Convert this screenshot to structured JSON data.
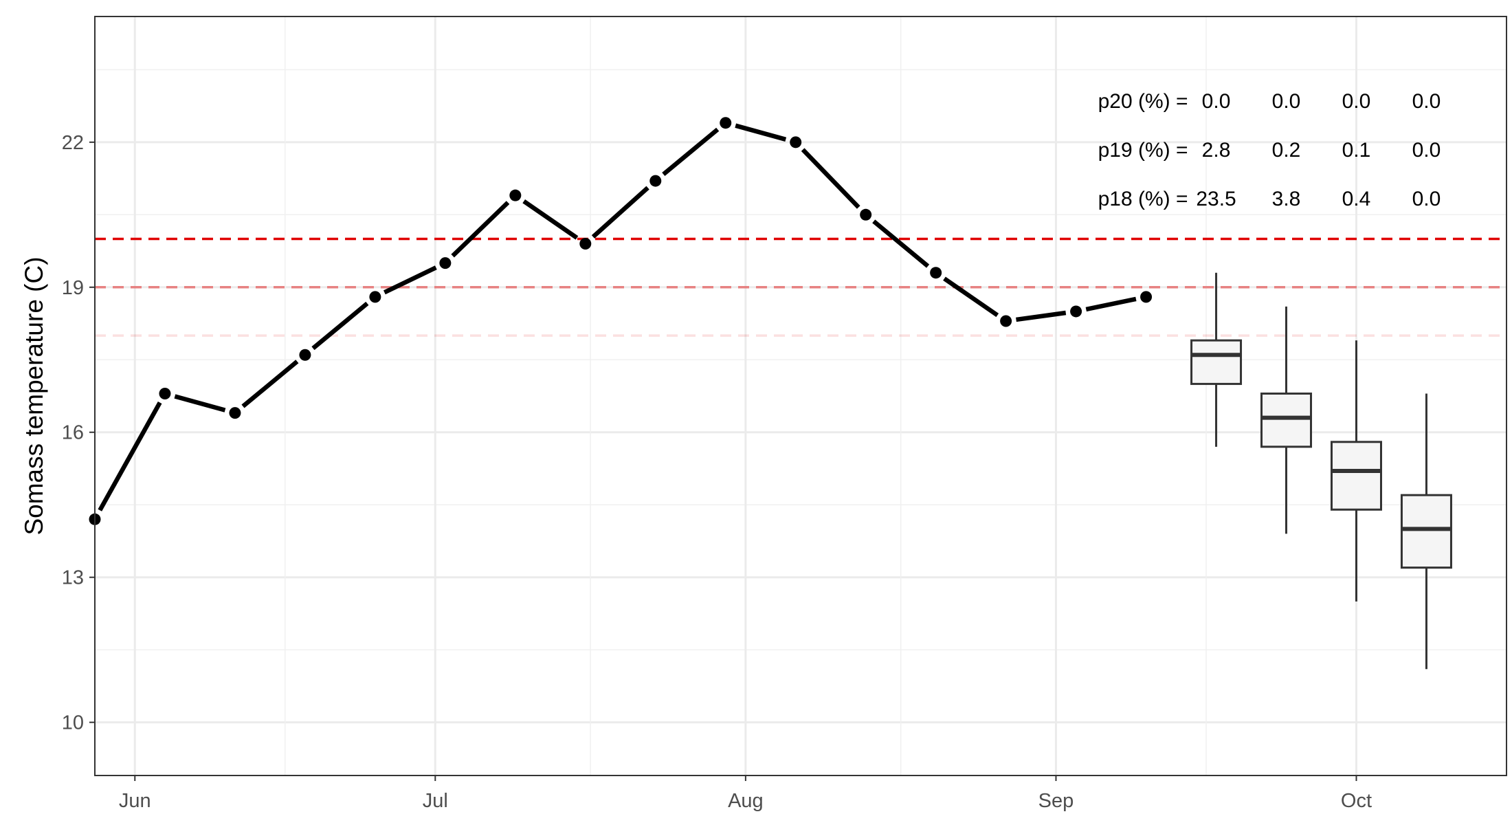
{
  "chart_data": {
    "type": "line",
    "ylabel": "Somass temperature (C)",
    "xlabel": "",
    "ylim": [
      8.9,
      24.6
    ],
    "xlim": [
      "2024-05-28",
      "2024-10-16"
    ],
    "y_ticks": [
      10,
      13,
      16,
      19,
      22
    ],
    "x_ticks": [
      {
        "label": "Jun",
        "date": "2024-06-01"
      },
      {
        "label": "Jul",
        "date": "2024-07-01"
      },
      {
        "label": "Aug",
        "date": "2024-08-01"
      },
      {
        "label": "Sep",
        "date": "2024-09-01"
      },
      {
        "label": "Oct",
        "date": "2024-10-01"
      }
    ],
    "grid": true,
    "observed": {
      "x": [
        "2024-05-28",
        "2024-06-04",
        "2024-06-11",
        "2024-06-18",
        "2024-06-25",
        "2024-07-02",
        "2024-07-09",
        "2024-07-16",
        "2024-07-23",
        "2024-07-30",
        "2024-08-06",
        "2024-08-13",
        "2024-08-20",
        "2024-08-27",
        "2024-09-03",
        "2024-09-10"
      ],
      "y": [
        14.2,
        16.8,
        16.4,
        17.6,
        18.8,
        19.5,
        20.9,
        19.9,
        21.2,
        22.4,
        22.0,
        20.5,
        19.3,
        18.3,
        18.5,
        18.8
      ],
      "color": "#000000"
    },
    "forecast_boxes": [
      {
        "date": "2024-09-17",
        "whisker_low": 15.7,
        "q1": 17.0,
        "median": 17.6,
        "q3": 17.9,
        "whisker_high": 19.3
      },
      {
        "date": "2024-09-24",
        "whisker_low": 13.9,
        "q1": 15.7,
        "median": 16.3,
        "q3": 16.8,
        "whisker_high": 18.6
      },
      {
        "date": "2024-10-01",
        "whisker_low": 12.5,
        "q1": 14.4,
        "median": 15.2,
        "q3": 15.8,
        "whisker_high": 17.9
      },
      {
        "date": "2024-10-08",
        "whisker_low": 11.1,
        "q1": 13.2,
        "median": 14.0,
        "q3": 14.7,
        "whisker_high": 16.8
      }
    ],
    "thresholds": [
      {
        "value": 20,
        "color": "#e00000",
        "opacity": 1.0
      },
      {
        "value": 19,
        "color": "#e00000",
        "opacity": 0.45
      },
      {
        "value": 18,
        "color": "#e00000",
        "opacity": 0.12
      }
    ],
    "annotations": [
      {
        "label": "p20 (%) =",
        "values": [
          "0.0",
          "0.0",
          "0.0",
          "0.0"
        ]
      },
      {
        "label": "p19 (%) =",
        "values": [
          "2.8",
          "0.2",
          "0.1",
          "0.0"
        ]
      },
      {
        "label": "p18 (%) =",
        "values": [
          "23.5",
          "3.8",
          "0.4",
          "0.0"
        ]
      }
    ]
  }
}
